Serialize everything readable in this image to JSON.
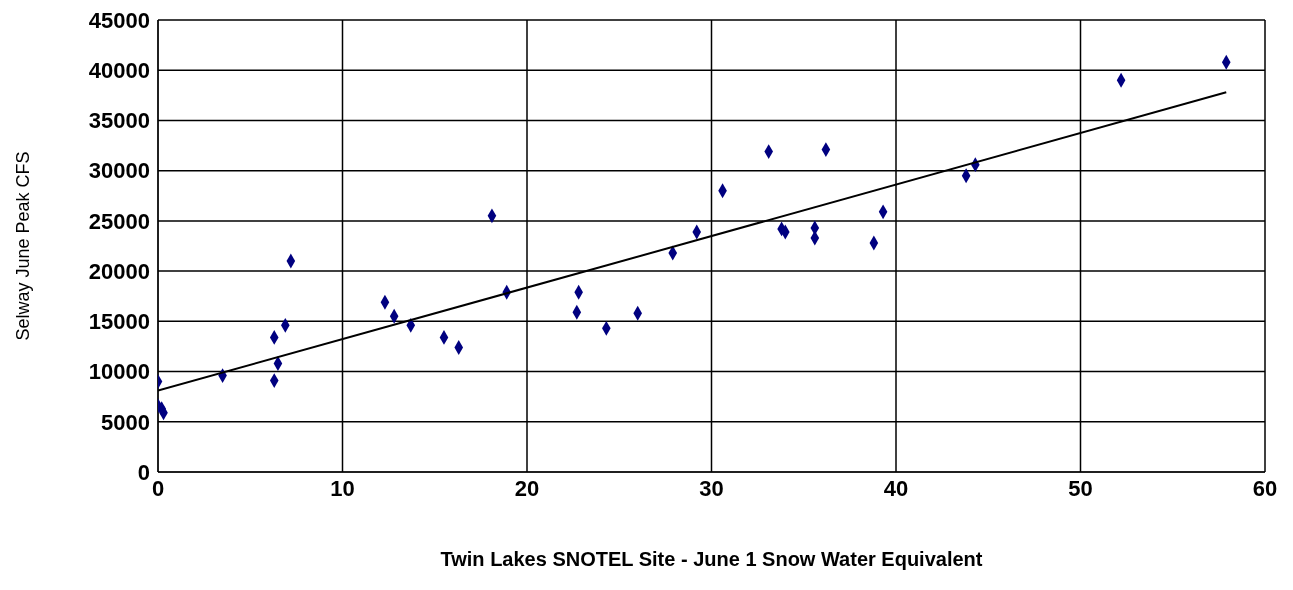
{
  "chart_data": {
    "type": "scatter",
    "xlabel": "Twin Lakes SNOTEL Site -  June 1 Snow Water Equivalent",
    "ylabel": "Selway June Peak CFS",
    "xlim": [
      0,
      60
    ],
    "xticks": [
      0,
      10,
      20,
      30,
      40,
      50,
      60
    ],
    "ylim": [
      0,
      45000
    ],
    "yticks": [
      0,
      5000,
      10000,
      15000,
      20000,
      25000,
      30000,
      35000,
      40000,
      45000
    ],
    "grid": true,
    "marker": "diamond",
    "series": [
      {
        "color": "#000080",
        "x": [
          0,
          0,
          0.2,
          0.3,
          3.5,
          6.3,
          6.5,
          6.3,
          6.9,
          7.2,
          12.3,
          12.8,
          13.7,
          15.5,
          16.3,
          18.1,
          18.9,
          22.7,
          22.8,
          24.3,
          26,
          27.9,
          29.2,
          30.6,
          33.1,
          33.8,
          34,
          35.6,
          35.6,
          36.2,
          38.8,
          39.3,
          43.8,
          44.3,
          52.2,
          57.9
        ],
        "values": [
          9000,
          6600,
          6300,
          5900,
          9600,
          13400,
          10800,
          9100,
          14600,
          21000,
          16900,
          15500,
          14600,
          13400,
          12400,
          25500,
          17900,
          15900,
          17900,
          14300,
          15800,
          21800,
          23900,
          28000,
          31900,
          24200,
          23900,
          24300,
          23300,
          32100,
          22800,
          25900,
          29500,
          30600,
          39000,
          40800
        ]
      },
      {
        "type": "line",
        "color": "#000000",
        "marker": "none",
        "x": [
          0,
          57.9
        ],
        "values": [
          8100,
          37800
        ]
      }
    ]
  }
}
